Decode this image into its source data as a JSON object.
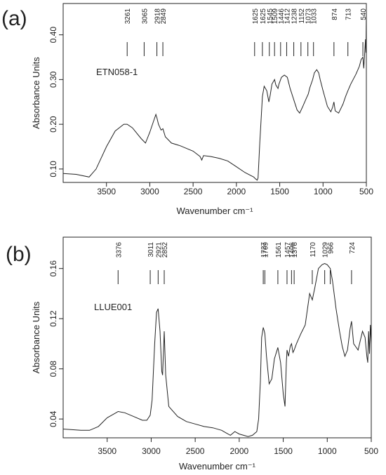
{
  "chart_data": [
    {
      "type": "line",
      "panel_label": "(a)",
      "sample_label": "ETN058-1",
      "xlabel": "Wavenumber cm⁻¹",
      "ylabel": "Absorbance Units",
      "xlim": [
        4000,
        500
      ],
      "ylim": [
        0.07,
        0.47
      ],
      "xticks": [
        3500,
        3000,
        2500,
        2000,
        1500,
        1000,
        500
      ],
      "yticks": [
        0.1,
        0.2,
        0.3,
        0.4
      ],
      "ytick_labels": [
        "0.10",
        "0.20",
        "0.30",
        "0.40"
      ],
      "peak_labels": [
        "3261",
        "3065",
        "2918",
        "2849",
        "1625",
        "1625",
        "1545",
        "1509",
        "1446",
        "1412",
        "1238",
        "1152",
        "1073",
        "1033",
        "874",
        "713",
        "540"
      ],
      "peak_positions": [
        3261,
        3065,
        2918,
        2849,
        1790,
        1700,
        1620,
        1560,
        1490,
        1420,
        1338,
        1255,
        1175,
        1110,
        874,
        713,
        540
      ],
      "series": [
        {
          "x": [
            4000,
            3850,
            3700,
            3620,
            3500,
            3400,
            3300,
            3261,
            3200,
            3100,
            3050,
            3000,
            2960,
            2930,
            2918,
            2900,
            2870,
            2849,
            2820,
            2750,
            2650,
            2500,
            2420,
            2400,
            2380,
            2300,
            2200,
            2100,
            2000,
            1900,
            1800,
            1780,
            1760,
            1750,
            1730,
            1700,
            1680,
            1650,
            1625,
            1610,
            1590,
            1560,
            1545,
            1520,
            1509,
            1480,
            1446,
            1412,
            1380,
            1330,
            1300,
            1270,
            1238,
            1200,
            1170,
            1152,
            1120,
            1100,
            1073,
            1050,
            1033,
            1000,
            950,
            910,
            890,
            874,
            860,
            820,
            770,
            740,
            713,
            680,
            620,
            580,
            560,
            540,
            530,
            520,
            510,
            505,
            500
          ],
          "y": [
            0.09,
            0.088,
            0.082,
            0.1,
            0.15,
            0.185,
            0.2,
            0.2,
            0.192,
            0.168,
            0.158,
            0.182,
            0.205,
            0.222,
            0.215,
            0.2,
            0.187,
            0.19,
            0.172,
            0.158,
            0.152,
            0.14,
            0.128,
            0.12,
            0.13,
            0.128,
            0.124,
            0.118,
            0.105,
            0.092,
            0.082,
            0.078,
            0.075,
            0.08,
            0.16,
            0.262,
            0.285,
            0.275,
            0.25,
            0.265,
            0.29,
            0.3,
            0.288,
            0.28,
            0.29,
            0.305,
            0.31,
            0.305,
            0.28,
            0.25,
            0.232,
            0.225,
            0.238,
            0.255,
            0.268,
            0.282,
            0.3,
            0.315,
            0.322,
            0.315,
            0.3,
            0.275,
            0.24,
            0.228,
            0.238,
            0.25,
            0.23,
            0.225,
            0.245,
            0.262,
            0.275,
            0.29,
            0.312,
            0.33,
            0.345,
            0.35,
            0.325,
            0.355,
            0.39,
            0.36,
            0.45
          ]
        }
      ]
    },
    {
      "type": "line",
      "panel_label": "(b)",
      "sample_label": "LLUE001",
      "xlabel": "Wavenumber cm⁻¹",
      "ylabel": "Absorbance Units",
      "xlim": [
        4000,
        500
      ],
      "ylim": [
        0.025,
        0.185
      ],
      "xticks": [
        3500,
        3000,
        2500,
        2000,
        1500,
        1000,
        500
      ],
      "yticks": [
        0.04,
        0.08,
        0.12,
        0.16
      ],
      "ytick_labels": [
        "0.04",
        "0.08",
        "0.12",
        "0.16"
      ],
      "peak_labels": [
        "3376",
        "3011",
        "2921",
        "2852",
        "1727",
        "1709",
        "1561",
        "1457",
        "1406",
        "1376",
        "1170",
        "1029",
        "966",
        "724"
      ],
      "peak_positions": [
        3376,
        3011,
        2921,
        2852,
        1727,
        1709,
        1561,
        1457,
        1406,
        1376,
        1170,
        1029,
        966,
        724
      ],
      "series": [
        {
          "x": [
            4000,
            3800,
            3700,
            3600,
            3500,
            3400,
            3376,
            3300,
            3200,
            3100,
            3050,
            3011,
            2990,
            2960,
            2940,
            2921,
            2900,
            2880,
            2870,
            2852,
            2835,
            2800,
            2700,
            2600,
            2500,
            2400,
            2300,
            2200,
            2150,
            2100,
            2050,
            2000,
            1950,
            1900,
            1850,
            1800,
            1780,
            1760,
            1745,
            1727,
            1715,
            1709,
            1690,
            1660,
            1630,
            1600,
            1561,
            1530,
            1500,
            1480,
            1465,
            1457,
            1440,
            1420,
            1406,
            1390,
            1376,
            1350,
            1300,
            1250,
            1200,
            1170,
            1140,
            1100,
            1060,
            1029,
            1000,
            966,
            940,
            900,
            860,
            830,
            800,
            770,
            740,
            724,
            700,
            650,
            600,
            570,
            550,
            540,
            530,
            520,
            510,
            500
          ],
          "y": [
            0.032,
            0.031,
            0.031,
            0.034,
            0.041,
            0.045,
            0.046,
            0.045,
            0.042,
            0.039,
            0.039,
            0.043,
            0.055,
            0.1,
            0.125,
            0.128,
            0.11,
            0.078,
            0.075,
            0.11,
            0.075,
            0.05,
            0.042,
            0.038,
            0.036,
            0.034,
            0.033,
            0.031,
            0.029,
            0.027,
            0.03,
            0.028,
            0.027,
            0.026,
            0.027,
            0.03,
            0.04,
            0.07,
            0.105,
            0.113,
            0.11,
            0.108,
            0.09,
            0.068,
            0.072,
            0.088,
            0.097,
            0.085,
            0.06,
            0.05,
            0.085,
            0.095,
            0.09,
            0.098,
            0.1,
            0.093,
            0.095,
            0.1,
            0.108,
            0.115,
            0.14,
            0.135,
            0.145,
            0.16,
            0.163,
            0.164,
            0.163,
            0.16,
            0.15,
            0.128,
            0.11,
            0.098,
            0.09,
            0.095,
            0.112,
            0.118,
            0.1,
            0.095,
            0.11,
            0.105,
            0.09,
            0.085,
            0.11,
            0.092,
            0.115,
            0.1
          ]
        }
      ]
    }
  ]
}
